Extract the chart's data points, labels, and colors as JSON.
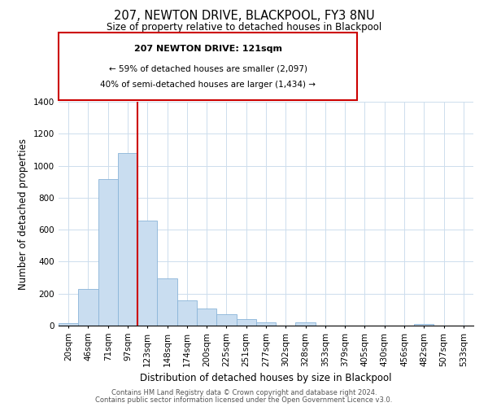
{
  "title": "207, NEWTON DRIVE, BLACKPOOL, FY3 8NU",
  "subtitle": "Size of property relative to detached houses in Blackpool",
  "xlabel": "Distribution of detached houses by size in Blackpool",
  "ylabel": "Number of detached properties",
  "bar_labels": [
    "20sqm",
    "46sqm",
    "71sqm",
    "97sqm",
    "123sqm",
    "148sqm",
    "174sqm",
    "200sqm",
    "225sqm",
    "251sqm",
    "277sqm",
    "302sqm",
    "328sqm",
    "353sqm",
    "379sqm",
    "405sqm",
    "430sqm",
    "456sqm",
    "482sqm",
    "507sqm",
    "533sqm"
  ],
  "bar_values": [
    15,
    228,
    918,
    1080,
    655,
    293,
    158,
    107,
    70,
    40,
    22,
    0,
    18,
    0,
    0,
    0,
    0,
    0,
    10,
    0,
    0
  ],
  "bar_color": "#c9ddf0",
  "bar_edge_color": "#8ab4d8",
  "vline_color": "#cc0000",
  "ylim": [
    0,
    1400
  ],
  "yticks": [
    0,
    200,
    400,
    600,
    800,
    1000,
    1200,
    1400
  ],
  "annotation_title": "207 NEWTON DRIVE: 121sqm",
  "annotation_line1": "← 59% of detached houses are smaller (2,097)",
  "annotation_line2": "40% of semi-detached houses are larger (1,434) →",
  "annotation_box_edge": "#cc0000",
  "footer_line1": "Contains HM Land Registry data © Crown copyright and database right 2024.",
  "footer_line2": "Contains public sector information licensed under the Open Government Licence v3.0.",
  "title_fontsize": 10.5,
  "subtitle_fontsize": 8.5,
  "xlabel_fontsize": 8.5,
  "ylabel_fontsize": 8.5,
  "tick_fontsize": 7.5
}
